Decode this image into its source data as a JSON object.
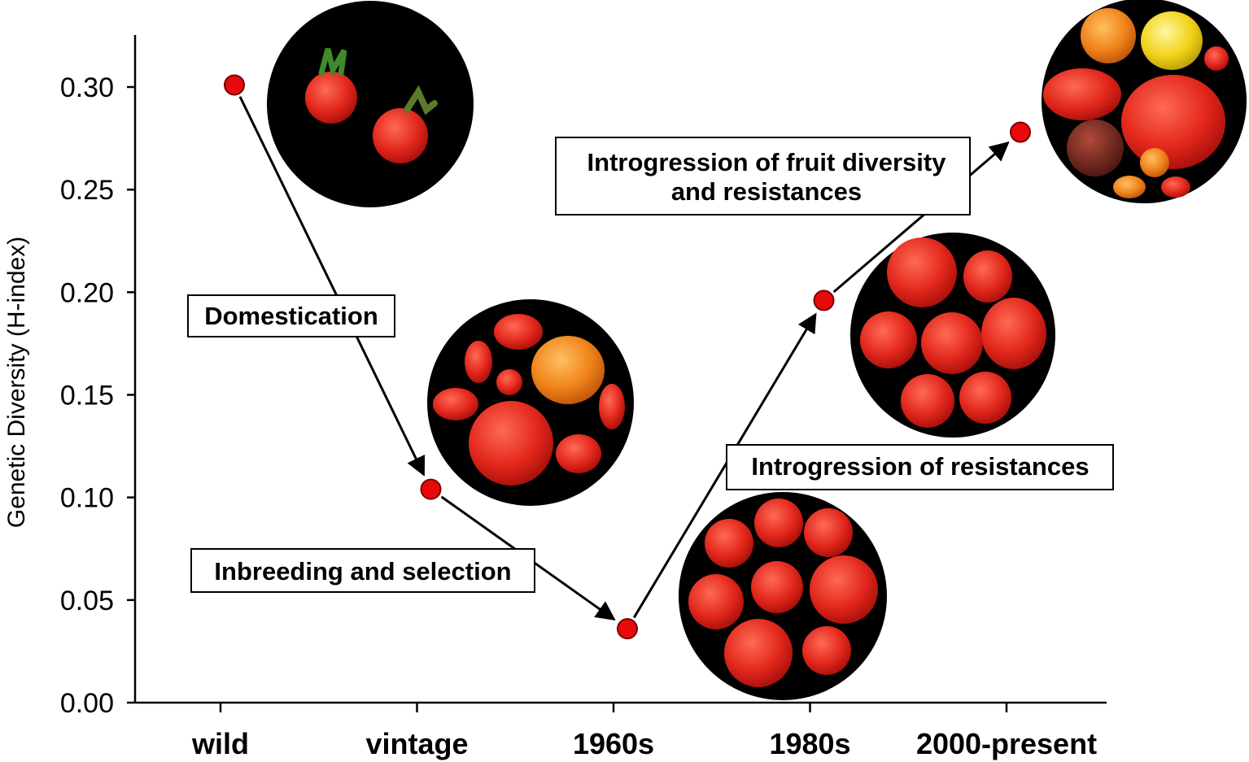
{
  "chart_data": {
    "type": "line",
    "categories": [
      "wild",
      "vintage",
      "1960s",
      "1980s",
      "2000-present"
    ],
    "series": [
      {
        "values": [
          0.301,
          0.104,
          0.036,
          0.196,
          0.278
        ]
      }
    ],
    "ylabel": "Genetic Diversity (H-index)",
    "xlabel": "",
    "ylim": [
      0,
      0.3
    ],
    "yticks": [
      "0.00",
      "0.05",
      "0.10",
      "0.15",
      "0.20",
      "0.25",
      "0.30"
    ],
    "grid": false,
    "annotations": [
      {
        "lines": [
          "Domestication"
        ]
      },
      {
        "lines": [
          "Inbreeding and selection"
        ]
      },
      {
        "lines": [
          "Introgression of resistances"
        ]
      },
      {
        "lines": [
          "Introgression of fruit diversity",
          "and resistances"
        ]
      }
    ],
    "colors": {
      "point": "#e80a0a",
      "point_stroke": "#7a0000",
      "axis": "#000000",
      "photo_bg": "#000000",
      "tomato_red": "#d8231a",
      "tomato_orange": "#f07a12",
      "tomato_yellow": "#f2d21a"
    },
    "photos": [
      "wild-tomatoes",
      "vintage-tomatoes",
      "1960s-tomatoes",
      "1980s-tomatoes",
      "modern-tomatoes"
    ]
  }
}
